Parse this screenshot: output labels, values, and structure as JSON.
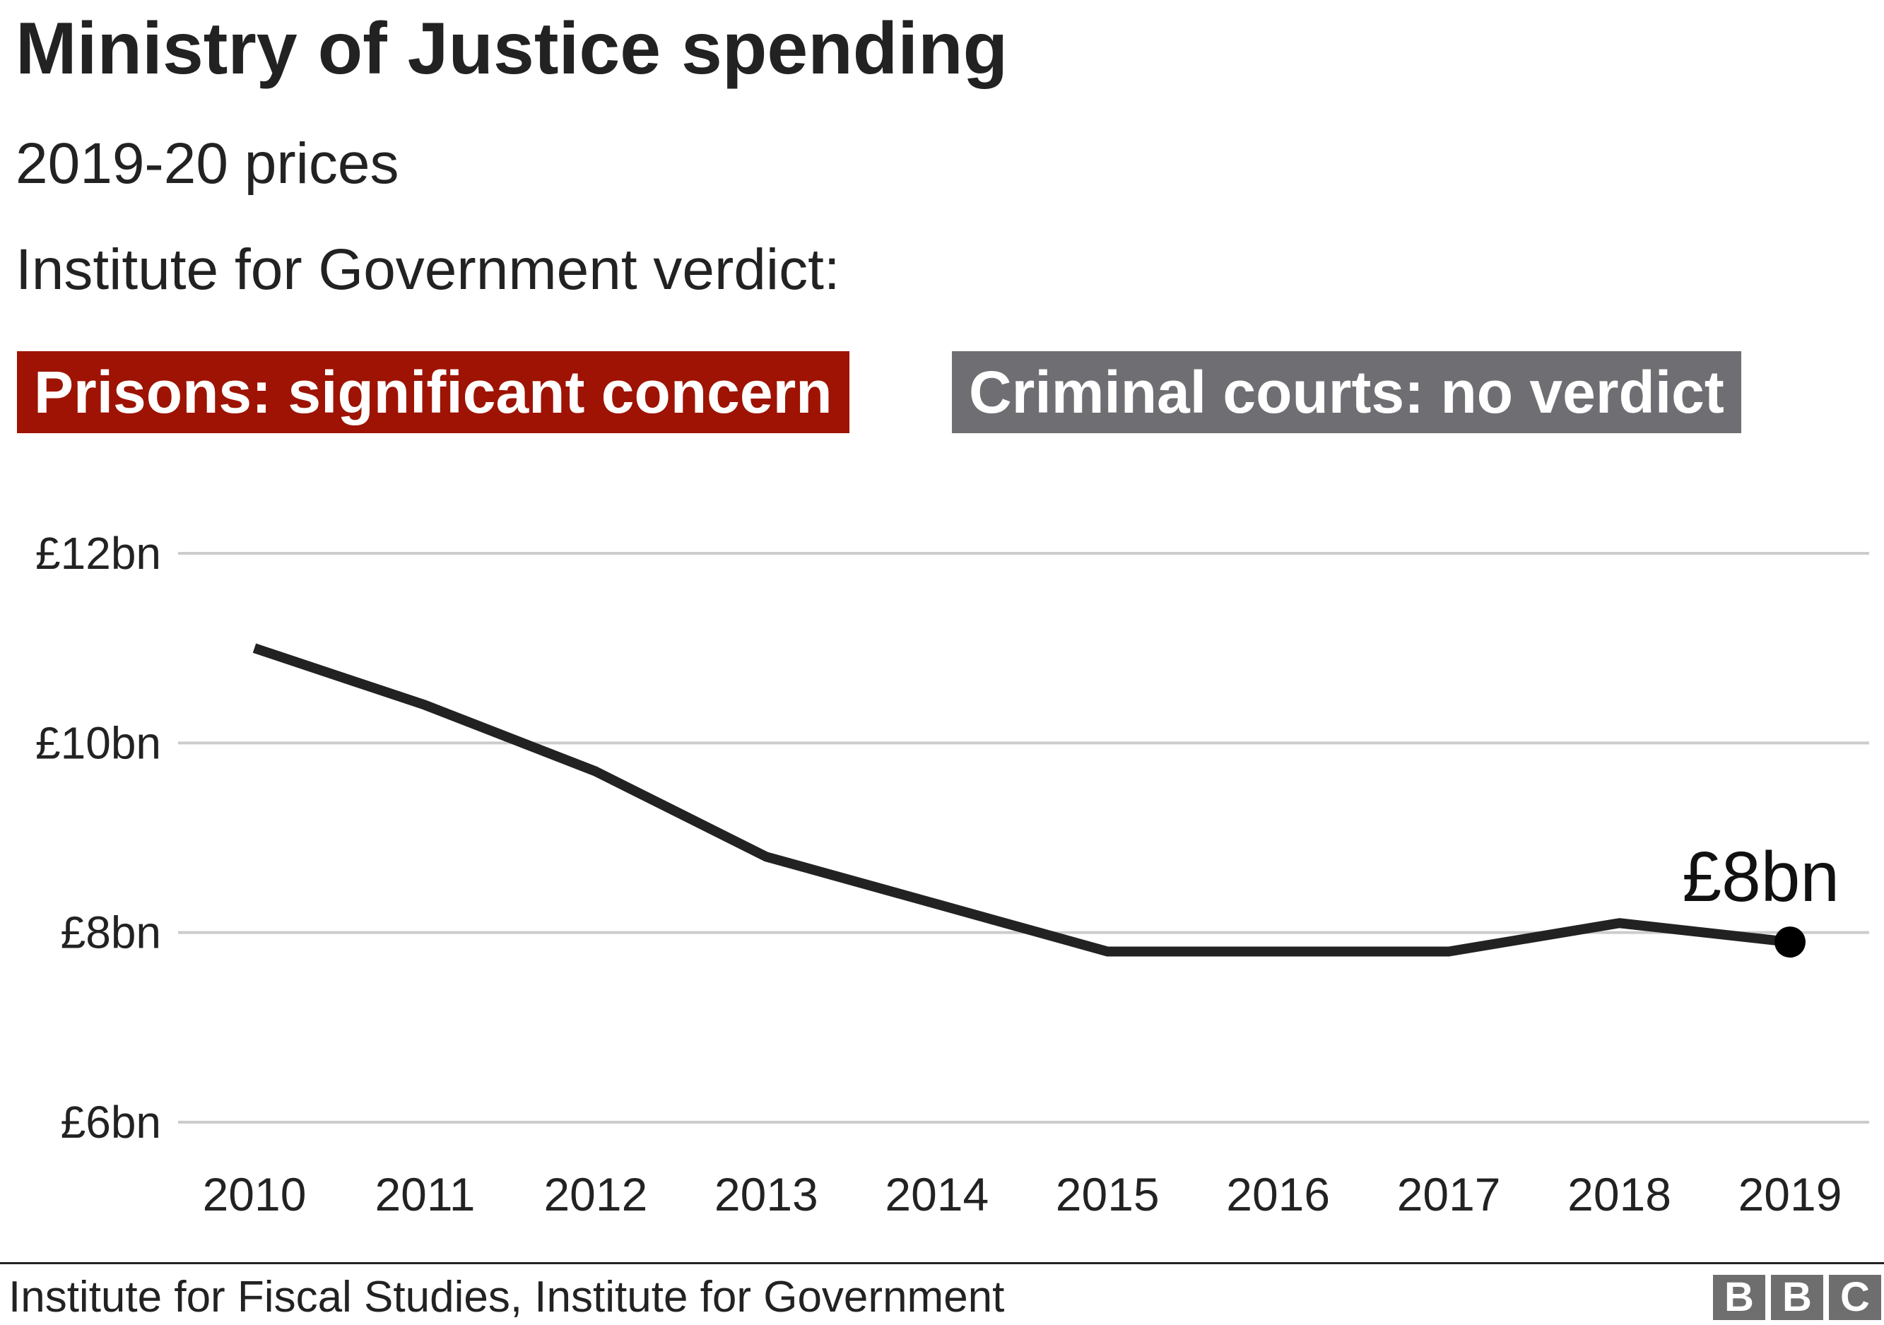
{
  "header": {
    "title": "Ministry of Justice spending",
    "subtitle": "2019-20 prices",
    "verdict_label": "Institute for Government verdict:"
  },
  "badges": [
    {
      "label": "Prisons: significant concern",
      "color": "#9e1303"
    },
    {
      "label": "Criminal courts: no verdict",
      "color": "#6e6e73"
    }
  ],
  "chart_data": {
    "type": "line",
    "title": "Ministry of Justice spending",
    "subtitle": "2019-20 prices",
    "xlabel": "",
    "ylabel": "",
    "x": [
      "2010",
      "2011",
      "2012",
      "2013",
      "2014",
      "2015",
      "2016",
      "2017",
      "2018",
      "2019"
    ],
    "series": [
      {
        "values": [
          11.0,
          10.4,
          9.7,
          8.8,
          8.3,
          7.8,
          7.8,
          7.8,
          8.1,
          7.9
        ],
        "color": "#222222"
      }
    ],
    "ylim": [
      6,
      12
    ],
    "yticks": [
      6,
      8,
      10,
      12
    ],
    "ytick_labels": [
      "£6bn",
      "£8bn",
      "£10bn",
      "£12bn"
    ],
    "grid": true,
    "annotation": {
      "label": "£8bn",
      "x": "2019",
      "y": 7.9
    }
  },
  "footer": {
    "source": "Institute for Fiscal Studies, Institute for Government",
    "logo_letters": [
      "B",
      "B",
      "C"
    ]
  }
}
